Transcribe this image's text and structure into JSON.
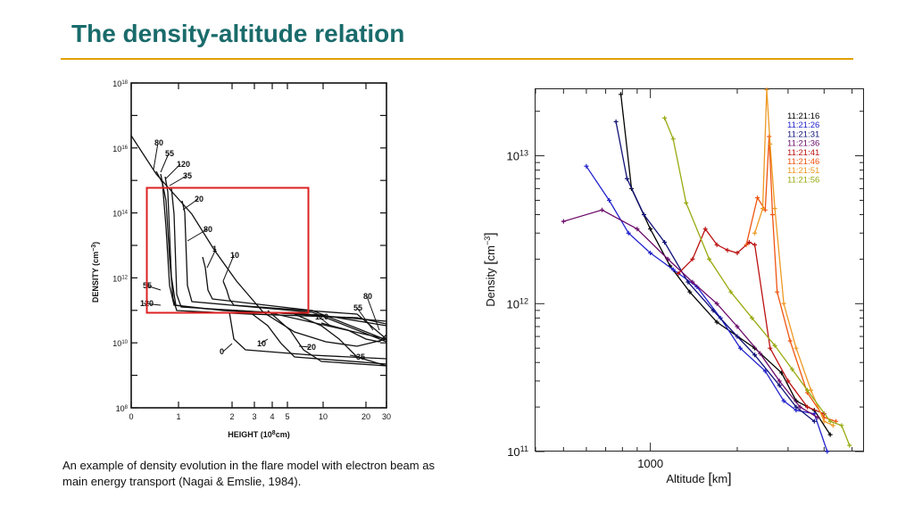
{
  "slide": {
    "title": "The density-altitude relation",
    "caption": "An example of density evolution in the flare model with electron beam as main energy transport (Nagai & Emslie, 1984)."
  },
  "colors": {
    "title": "#1a6b6b",
    "rule": "#e0a000",
    "highlight_box": "#dd2222"
  },
  "chart_data": [
    {
      "type": "line",
      "xlabel": "HEIGHT (10^8cm)",
      "ylabel": "DENSITY (cm^-3)",
      "x_ticks": [
        "0",
        "1",
        "2",
        "3",
        "4",
        "5",
        "10",
        "20",
        "30"
      ],
      "y_ticks": [
        "10^8",
        "10^10",
        "10^12",
        "10^14",
        "10^16",
        "10^18"
      ],
      "curve_labels": [
        "80",
        "55",
        "120",
        "35",
        "20",
        "80",
        "1",
        "10",
        "55",
        "120",
        "80",
        "55",
        "120",
        "0",
        "10",
        "20",
        "35"
      ],
      "highlight_box": true
    },
    {
      "type": "line",
      "xlabel": "Altitude [km]",
      "ylabel": "Density [cm^-3]",
      "x_log": true,
      "y_log": true,
      "x_tick_labels": [
        "1000"
      ],
      "y_tick_labels": [
        "10^11",
        "10^12",
        "10^13"
      ],
      "legend_position": "top-right",
      "series": [
        {
          "name": "11:21:16",
          "color": "#000000",
          "x": [
            790,
            860,
            1000,
            1170,
            1370,
            1700,
            2300,
            2850,
            3200,
            3700,
            4200
          ],
          "y": [
            26000000000000.0,
            6000000000000.0,
            3200000000000.0,
            1800000000000.0,
            1200000000000.0,
            750000000000.0,
            500000000000.0,
            340000000000.0,
            220000000000.0,
            190000000000.0,
            130000000000.0
          ]
        },
        {
          "name": "11:21:26",
          "color": "#2222cc",
          "x": [
            600,
            720,
            840,
            1000,
            1200,
            1450,
            1750,
            2050,
            2500,
            2900,
            3200,
            3700,
            4100
          ],
          "y": [
            8500000000000.0,
            5000000000000.0,
            3000000000000.0,
            2200000000000.0,
            1700000000000.0,
            1300000000000.0,
            800000000000.0,
            500000000000.0,
            350000000000.0,
            220000000000.0,
            190000000000.0,
            180000000000.0,
            100000000000.0
          ]
        },
        {
          "name": "11:21:31",
          "color": "#111177",
          "x": [
            760,
            830,
            950,
            1120,
            1350,
            1650,
            2000,
            2300,
            2800,
            3200,
            3700
          ],
          "y": [
            17000000000000.0,
            7000000000000.0,
            4000000000000.0,
            2600000000000.0,
            1400000000000.0,
            900000000000.0,
            600000000000.0,
            450000000000.0,
            280000000000.0,
            200000000000.0,
            160000000000.0
          ]
        },
        {
          "name": "11:21:36",
          "color": "#6a0a6a",
          "x": [
            500,
            680,
            900,
            1150,
            1400,
            1700,
            2000,
            2400,
            2800,
            3300,
            3800
          ],
          "y": [
            3600000000000.0,
            4300000000000.0,
            3200000000000.0,
            2000000000000.0,
            1400000000000.0,
            1000000000000.0,
            700000000000.0,
            460000000000.0,
            300000000000.0,
            200000000000.0,
            170000000000.0
          ]
        },
        {
          "name": "11:21:41",
          "color": "#bb1111",
          "x": [
            1250,
            1400,
            1550,
            1700,
            1850,
            2000,
            2200,
            2300,
            2600,
            3000,
            3500,
            4000
          ],
          "y": [
            1600000000000.0,
            2000000000000.0,
            3200000000000.0,
            2500000000000.0,
            2300000000000.0,
            2200000000000.0,
            2600000000000.0,
            2500000000000.0,
            500000000000.0,
            300000000000.0,
            200000000000.0,
            180000000000.0
          ]
        },
        {
          "name": "11:21:46",
          "color": "#ee5511",
          "x": [
            2150,
            2350,
            2500,
            2580,
            2650,
            2750,
            3050,
            3500,
            4000,
            4400
          ],
          "y": [
            2500000000000.0,
            5200000000000.0,
            4300000000000.0,
            13500000000000.0,
            4000000000000.0,
            1200000000000.0,
            560000000000.0,
            250000000000.0,
            170000000000.0,
            160000000000.0
          ]
        },
        {
          "name": "11:21:51",
          "color": "#ee9922",
          "x": [
            2300,
            2450,
            2530,
            2600,
            2700,
            2900,
            3200,
            3600,
            4000,
            4300
          ],
          "y": [
            3000000000000.0,
            4400000000000.0,
            28000000000000.0,
            12000000000000.0,
            4400000000000.0,
            1000000000000.0,
            500000000000.0,
            260000000000.0,
            160000000000.0,
            150000000000.0
          ]
        },
        {
          "name": "11:21:56",
          "color": "#99aa11",
          "x": [
            1120,
            1200,
            1330,
            1600,
            1900,
            2250,
            2700,
            3100,
            3500,
            4200,
            4600,
            4900
          ],
          "y": [
            18000000000000.0,
            13000000000000.0,
            4800000000000.0,
            2000000000000.0,
            1200000000000.0,
            800000000000.0,
            520000000000.0,
            360000000000.0,
            260000000000.0,
            160000000000.0,
            150000000000.0,
            110000000000.0
          ]
        }
      ]
    }
  ]
}
